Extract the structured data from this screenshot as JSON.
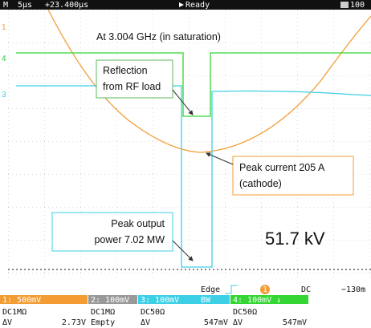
{
  "top_bar": {
    "mode": "M",
    "timebase": "5µs",
    "delay": "+23.400µs",
    "status": "Ready",
    "record": "100"
  },
  "markers": [
    "1",
    "4",
    "3"
  ],
  "annotations": {
    "frequency": "At 3.004 GHz (in saturation)",
    "reflection": [
      "Reflection",
      "from RF load"
    ],
    "current": [
      "Peak current 205 A",
      "(cathode)"
    ],
    "power": [
      "Peak output",
      "power 7.02 MW"
    ],
    "voltage": "51.7 kV"
  },
  "trigger": {
    "type": "Edge",
    "source": "1",
    "coupling": "DC",
    "level": "−130m"
  },
  "channels": [
    {
      "header": "1: 500mV",
      "coupling": "DC1MΩ",
      "delta_label": "ΔV",
      "delta": "2.73V"
    },
    {
      "header": "2: 100mV",
      "coupling": "DC1MΩ",
      "delta": "Empty"
    },
    {
      "header": "3: 100mV",
      "bw": "BW",
      "coupling": "DC50Ω",
      "delta_label": "ΔV",
      "delta": "547mV"
    },
    {
      "header": "4: 100mV ↓",
      "coupling": "DC50Ω",
      "delta_label": "ΔV",
      "delta": "547mV"
    }
  ]
}
